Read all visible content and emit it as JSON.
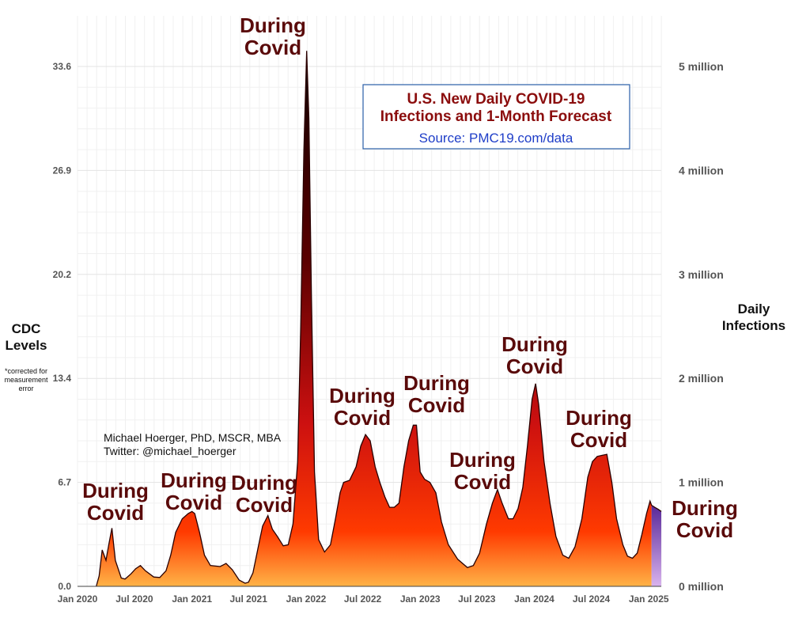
{
  "chart_data": {
    "type": "area",
    "title": "U.S. New Daily COVID-19",
    "title_line2": "Infections and 1-Month Forecast",
    "subtitle": "Source:  PMC19.com/data",
    "left_axis_label": [
      "CDC",
      "Levels"
    ],
    "left_axis_note": [
      "*corrected for",
      "measurement",
      "error"
    ],
    "right_axis_label": [
      "Daily",
      "Infections"
    ],
    "credit": [
      "Michael Hoerger, PhD, MSCR, MBA",
      "Twitter: @michael_hoerger"
    ],
    "y_left_ticks": [
      "0.0",
      "6.7",
      "13.4",
      "20.2",
      "26.9",
      "33.6"
    ],
    "y_right_ticks": [
      "0 million",
      "1 million",
      "2 million",
      "3 million",
      "4 million",
      "5 million"
    ],
    "x_ticks": [
      "Jan 2020",
      "Jul 2020",
      "Jan 2021",
      "Jul 2021",
      "Jan 2022",
      "Jul 2022",
      "Jan 2023",
      "Jul 2023",
      "Jan 2024",
      "Jul 2024",
      "Jan 2025"
    ],
    "ylim": [
      0,
      5000000
    ],
    "xlim": [
      "2020-01-01",
      "2025-02-10"
    ],
    "grid": true,
    "forecast_start": "2025-01-10",
    "colors": {
      "high": "#0a0000",
      "mid": "#cc1010",
      "low": "#ff3a00",
      "base": "#ffb347",
      "forecast": "#7b3fb0",
      "title_box": "#2a5ea8"
    },
    "series": [
      {
        "points": [
          [
            "2020-03-01",
            0
          ],
          [
            "2020-03-10",
            100000
          ],
          [
            "2020-03-20",
            350000
          ],
          [
            "2020-04-01",
            250000
          ],
          [
            "2020-04-10",
            400000
          ],
          [
            "2020-04-20",
            560000
          ],
          [
            "2020-05-01",
            250000
          ],
          [
            "2020-05-20",
            80000
          ],
          [
            "2020-06-01",
            70000
          ],
          [
            "2020-06-20",
            120000
          ],
          [
            "2020-07-05",
            170000
          ],
          [
            "2020-07-20",
            200000
          ],
          [
            "2020-08-05",
            150000
          ],
          [
            "2020-09-01",
            90000
          ],
          [
            "2020-09-20",
            85000
          ],
          [
            "2020-10-10",
            150000
          ],
          [
            "2020-10-25",
            300000
          ],
          [
            "2020-11-10",
            520000
          ],
          [
            "2020-12-01",
            650000
          ],
          [
            "2020-12-20",
            700000
          ],
          [
            "2021-01-01",
            720000
          ],
          [
            "2021-01-10",
            700000
          ],
          [
            "2021-01-25",
            520000
          ],
          [
            "2021-02-10",
            300000
          ],
          [
            "2021-03-01",
            200000
          ],
          [
            "2021-04-01",
            190000
          ],
          [
            "2021-04-20",
            220000
          ],
          [
            "2021-05-10",
            160000
          ],
          [
            "2021-06-01",
            60000
          ],
          [
            "2021-06-20",
            30000
          ],
          [
            "2021-07-01",
            40000
          ],
          [
            "2021-07-15",
            130000
          ],
          [
            "2021-08-01",
            380000
          ],
          [
            "2021-08-15",
            580000
          ],
          [
            "2021-09-01",
            680000
          ],
          [
            "2021-09-15",
            550000
          ],
          [
            "2021-10-01",
            480000
          ],
          [
            "2021-10-20",
            390000
          ],
          [
            "2021-11-05",
            400000
          ],
          [
            "2021-11-20",
            600000
          ],
          [
            "2021-12-05",
            1200000
          ],
          [
            "2021-12-15",
            2500000
          ],
          [
            "2021-12-25",
            4200000
          ],
          [
            "2022-01-03",
            5150000
          ],
          [
            "2022-01-10",
            4500000
          ],
          [
            "2022-01-18",
            2800000
          ],
          [
            "2022-01-28",
            1100000
          ],
          [
            "2022-02-10",
            450000
          ],
          [
            "2022-03-01",
            330000
          ],
          [
            "2022-03-20",
            400000
          ],
          [
            "2022-04-05",
            650000
          ],
          [
            "2022-04-20",
            900000
          ],
          [
            "2022-05-01",
            1000000
          ],
          [
            "2022-05-20",
            1020000
          ],
          [
            "2022-06-10",
            1150000
          ],
          [
            "2022-06-25",
            1350000
          ],
          [
            "2022-07-10",
            1460000
          ],
          [
            "2022-07-25",
            1400000
          ],
          [
            "2022-08-10",
            1150000
          ],
          [
            "2022-08-25",
            1000000
          ],
          [
            "2022-09-10",
            860000
          ],
          [
            "2022-09-25",
            760000
          ],
          [
            "2022-10-10",
            760000
          ],
          [
            "2022-10-25",
            800000
          ],
          [
            "2022-11-10",
            1150000
          ],
          [
            "2022-11-25",
            1400000
          ],
          [
            "2022-12-10",
            1550000
          ],
          [
            "2022-12-20",
            1550000
          ],
          [
            "2023-01-01",
            1100000
          ],
          [
            "2023-01-15",
            1030000
          ],
          [
            "2023-02-01",
            1000000
          ],
          [
            "2023-02-20",
            900000
          ],
          [
            "2023-03-10",
            620000
          ],
          [
            "2023-04-01",
            400000
          ],
          [
            "2023-05-01",
            260000
          ],
          [
            "2023-06-01",
            180000
          ],
          [
            "2023-06-20",
            200000
          ],
          [
            "2023-07-10",
            320000
          ],
          [
            "2023-08-01",
            600000
          ],
          [
            "2023-08-20",
            800000
          ],
          [
            "2023-09-05",
            930000
          ],
          [
            "2023-09-20",
            800000
          ],
          [
            "2023-10-10",
            650000
          ],
          [
            "2023-10-25",
            650000
          ],
          [
            "2023-11-10",
            750000
          ],
          [
            "2023-11-25",
            950000
          ],
          [
            "2023-12-10",
            1350000
          ],
          [
            "2023-12-25",
            1800000
          ],
          [
            "2024-01-05",
            1950000
          ],
          [
            "2024-01-15",
            1750000
          ],
          [
            "2024-02-01",
            1200000
          ],
          [
            "2024-02-20",
            800000
          ],
          [
            "2024-03-10",
            480000
          ],
          [
            "2024-04-01",
            300000
          ],
          [
            "2024-04-20",
            270000
          ],
          [
            "2024-05-10",
            380000
          ],
          [
            "2024-06-01",
            650000
          ],
          [
            "2024-06-20",
            1050000
          ],
          [
            "2024-07-05",
            1200000
          ],
          [
            "2024-07-20",
            1250000
          ],
          [
            "2024-08-05",
            1260000
          ],
          [
            "2024-08-20",
            1270000
          ],
          [
            "2024-09-05",
            1000000
          ],
          [
            "2024-09-20",
            650000
          ],
          [
            "2024-10-10",
            400000
          ],
          [
            "2024-10-25",
            290000
          ],
          [
            "2024-11-10",
            270000
          ],
          [
            "2024-11-25",
            320000
          ],
          [
            "2024-12-10",
            500000
          ],
          [
            "2024-12-25",
            700000
          ],
          [
            "2025-01-05",
            820000
          ],
          [
            "2025-01-10",
            780000
          ],
          [
            "2025-01-20",
            760000
          ],
          [
            "2025-02-01",
            740000
          ],
          [
            "2025-02-10",
            720000
          ]
        ]
      }
    ],
    "annotations": [
      {
        "text": [
          "During",
          "Covid"
        ],
        "date": "2020-04-25"
      },
      {
        "text": [
          "During",
          "Covid"
        ],
        "date": "2020-12-15"
      },
      {
        "text": [
          "During",
          "Covid"
        ],
        "date": "2021-08-20"
      },
      {
        "text": [
          "During",
          "Covid"
        ],
        "date": "2021-12-20"
      },
      {
        "text": [
          "During",
          "Covid"
        ],
        "date": "2022-05-25"
      },
      {
        "text": [
          "During",
          "Covid"
        ],
        "date": "2022-12-15"
      },
      {
        "text": [
          "During",
          "Covid"
        ],
        "date": "2023-08-10"
      },
      {
        "text": [
          "During",
          "Covid"
        ],
        "date": "2023-12-25"
      },
      {
        "text": [
          "During",
          "Covid"
        ],
        "date": "2024-08-05"
      },
      {
        "text": [
          "During",
          "Covid"
        ],
        "date": "2025-03-01"
      }
    ]
  }
}
